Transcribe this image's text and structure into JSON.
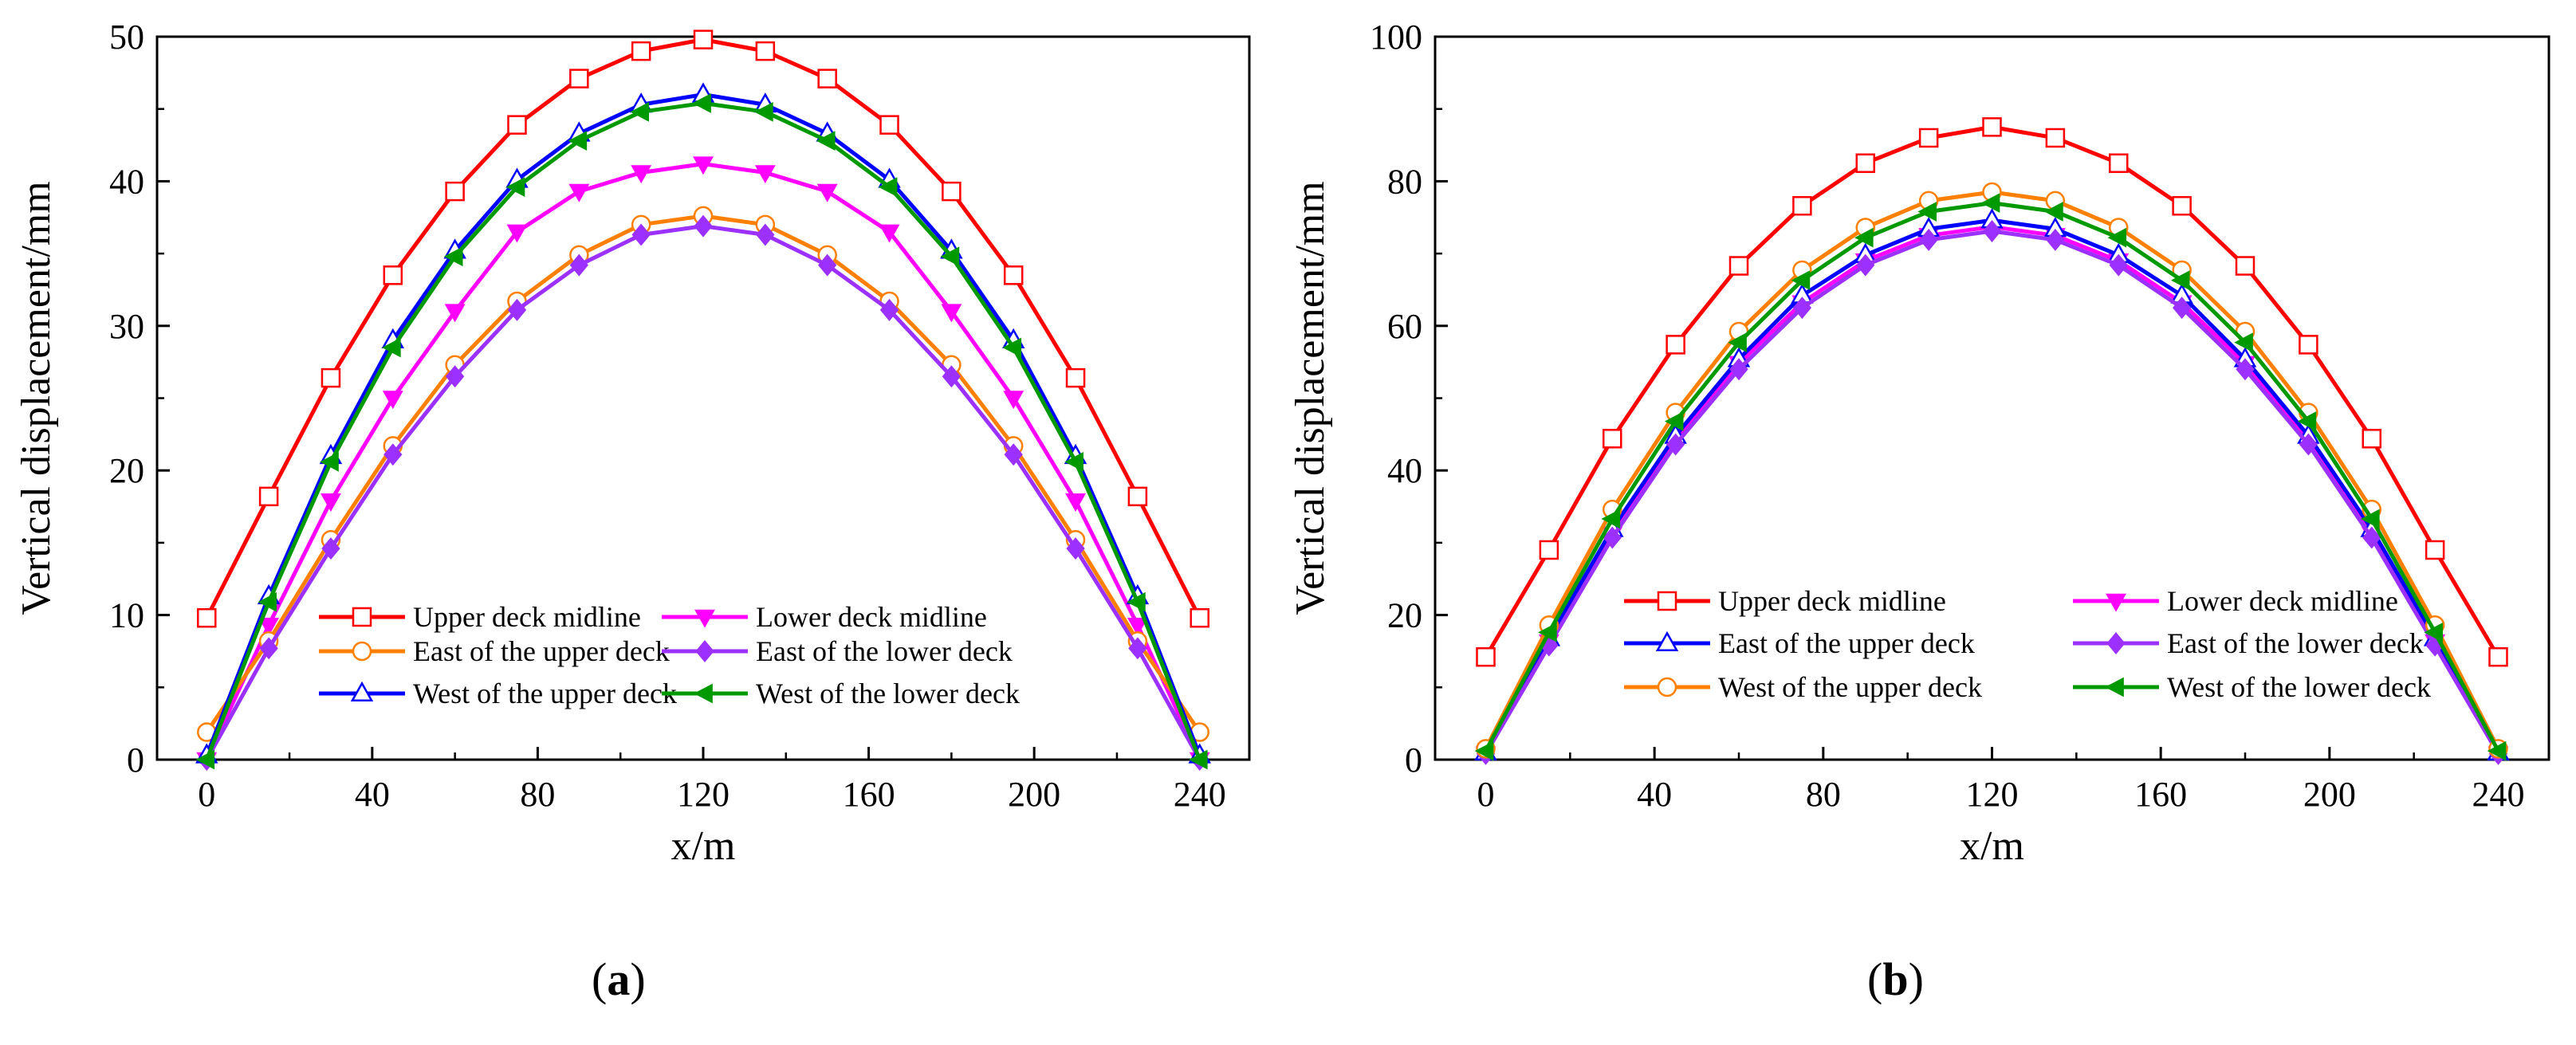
{
  "chart_data": [
    {
      "panel": "(a)",
      "type": "line",
      "xlabel": "x/m",
      "ylabel": "Vertical displacement/mm",
      "xlim": [
        -12,
        252
      ],
      "ylim": [
        0,
        50
      ],
      "xticks": [
        0,
        40,
        80,
        120,
        160,
        200,
        240
      ],
      "yticks": [
        0,
        10,
        20,
        30,
        40,
        50
      ],
      "x": [
        0,
        15,
        30,
        45,
        60,
        75,
        90,
        105,
        120,
        135,
        150,
        165,
        180,
        195,
        210,
        225,
        240
      ],
      "series": [
        {
          "name": "Upper deck midline",
          "color": "#ff0000",
          "marker": "square-open",
          "values": [
            9.8,
            18.2,
            26.4,
            33.5,
            39.3,
            43.9,
            47.1,
            49.0,
            49.8,
            49.0,
            47.1,
            43.9,
            39.3,
            33.5,
            26.4,
            18.2,
            9.8
          ]
        },
        {
          "name": "Lower deck midline",
          "color": "#ff00ff",
          "marker": "triangle-down-filled",
          "values": [
            0.0,
            9.3,
            17.9,
            25.0,
            31.0,
            36.5,
            39.3,
            40.6,
            41.2,
            40.6,
            39.3,
            36.5,
            31.0,
            25.0,
            17.9,
            9.3,
            0.0
          ]
        },
        {
          "name": "East of the upper deck",
          "color": "#ff8000",
          "marker": "circle-open",
          "values": [
            1.9,
            8.2,
            15.2,
            21.7,
            27.3,
            31.7,
            34.9,
            37.0,
            37.6,
            37.0,
            34.9,
            31.7,
            27.3,
            21.7,
            15.2,
            8.2,
            1.9
          ]
        },
        {
          "name": "East of the lower deck",
          "color": "#9b30ff",
          "marker": "diamond-filled",
          "values": [
            0.0,
            7.7,
            14.6,
            21.1,
            26.5,
            31.1,
            34.2,
            36.3,
            36.9,
            36.3,
            34.2,
            31.1,
            26.5,
            21.1,
            14.6,
            7.7,
            0.0
          ]
        },
        {
          "name": "West of the upper deck",
          "color": "#0000ff",
          "marker": "triangle-up-open",
          "values": [
            0.3,
            11.3,
            21.0,
            29.0,
            35.2,
            40.1,
            43.3,
            45.3,
            46.0,
            45.3,
            43.3,
            40.1,
            35.2,
            29.0,
            21.0,
            11.3,
            0.3
          ]
        },
        {
          "name": "West of the lower deck",
          "color": "#009900",
          "marker": "triangle-left-filled",
          "values": [
            0.0,
            10.9,
            20.6,
            28.5,
            34.8,
            39.6,
            42.8,
            44.8,
            45.4,
            44.8,
            42.8,
            39.6,
            34.8,
            28.5,
            20.6,
            10.9,
            0.0
          ]
        }
      ]
    },
    {
      "panel": "(b)",
      "type": "line",
      "xlabel": "x/m",
      "ylabel": "Vertical displacement/mm",
      "xlim": [
        -12,
        252
      ],
      "ylim": [
        0,
        100
      ],
      "xticks": [
        0,
        40,
        80,
        120,
        160,
        200,
        240
      ],
      "yticks": [
        0,
        20,
        40,
        60,
        80,
        100
      ],
      "x": [
        0,
        15,
        30,
        45,
        60,
        75,
        90,
        105,
        120,
        135,
        150,
        165,
        180,
        195,
        210,
        225,
        240
      ],
      "series": [
        {
          "name": "Upper deck midline",
          "color": "#ff0000",
          "marker": "square-open",
          "values": [
            14.2,
            29.0,
            44.4,
            57.4,
            68.3,
            76.6,
            82.5,
            86.0,
            87.5,
            86.0,
            82.5,
            76.6,
            68.3,
            57.4,
            44.4,
            29.0,
            14.2
          ]
        },
        {
          "name": "Lower deck midline",
          "color": "#ff00ff",
          "marker": "triangle-down-filled",
          "values": [
            0.8,
            16.3,
            31.2,
            44.2,
            54.8,
            63.2,
            69.0,
            72.5,
            73.7,
            72.5,
            69.0,
            63.2,
            54.8,
            44.2,
            31.2,
            16.3,
            0.8
          ]
        },
        {
          "name": "East of the upper deck",
          "color": "#0000ff",
          "marker": "triangle-up-open",
          "values": [
            1.0,
            16.8,
            31.9,
            44.8,
            55.4,
            64.2,
            69.8,
            73.4,
            74.6,
            73.4,
            69.8,
            64.2,
            55.4,
            44.8,
            31.9,
            16.8,
            1.0
          ]
        },
        {
          "name": "East of the lower deck",
          "color": "#9b30ff",
          "marker": "diamond-filled",
          "values": [
            0.8,
            15.8,
            30.7,
            43.6,
            54.0,
            62.5,
            68.4,
            71.9,
            73.1,
            71.9,
            68.4,
            62.5,
            54.0,
            43.6,
            30.7,
            15.8,
            0.8
          ]
        },
        {
          "name": "West of the upper deck",
          "color": "#ff8000",
          "marker": "circle-open",
          "values": [
            1.5,
            18.6,
            34.6,
            48.0,
            59.2,
            67.7,
            73.6,
            77.3,
            78.5,
            77.3,
            73.6,
            67.7,
            59.2,
            48.0,
            34.6,
            18.6,
            1.5
          ]
        },
        {
          "name": "West of the lower deck",
          "color": "#009900",
          "marker": "triangle-left-filled",
          "values": [
            1.2,
            17.6,
            33.3,
            46.8,
            57.7,
            66.3,
            72.2,
            75.8,
            77.0,
            75.8,
            72.2,
            66.3,
            57.7,
            46.8,
            33.3,
            17.6,
            1.2
          ]
        }
      ]
    }
  ],
  "panel_labels": [
    "a",
    "b"
  ]
}
